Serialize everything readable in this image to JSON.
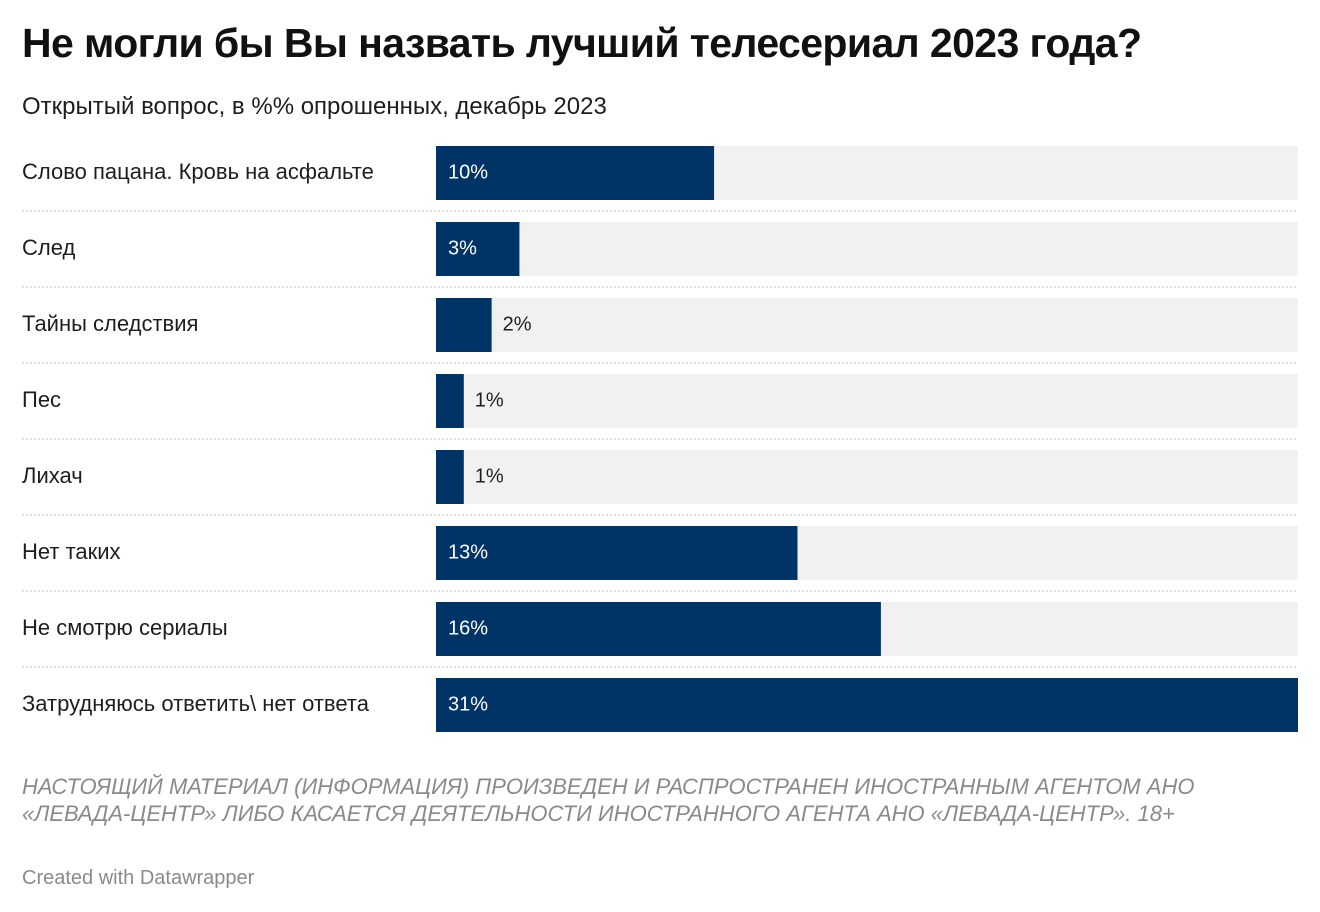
{
  "colors": {
    "bar": "#003366",
    "track": "#f1f1f1",
    "separator": "#d6d6d6"
  },
  "chart_data": {
    "type": "bar",
    "orientation": "horizontal",
    "title": "Не могли бы Вы назвать лучший телесериал 2023 года?",
    "subtitle": "Открытый вопрос, в %% опрошенных, декабрь 2023",
    "categories": [
      "Слово пацана. Кровь на асфальте",
      "След",
      "Тайны следствия",
      "Пес",
      "Лихач",
      "Нет таких",
      "Не смотрю сериалы",
      "Затрудняюсь ответить\\ нет ответа"
    ],
    "values": [
      10,
      3,
      2,
      1,
      1,
      13,
      16,
      31
    ],
    "value_labels": [
      "10%",
      "3%",
      "2%",
      "1%",
      "1%",
      "13%",
      "16%",
      "31%"
    ],
    "xlim": [
      0,
      31
    ],
    "grid": false,
    "legend": "none"
  },
  "notes": "НАСТОЯЩИЙ МАТЕРИАЛ (ИНФОРМАЦИЯ) ПРОИЗВЕДЕН И РАСПРОСТРАНЕН ИНОСТРАННЫМ АГЕНТОМ АНО «ЛЕВАДА-ЦЕНТР» ЛИБО КАСАЕТСЯ ДЕЯТЕЛЬНОСТИ ИНОСТРАННОГО АГЕНТА АНО «ЛЕВАДА-ЦЕНТР». 18+",
  "credit": "Created with Datawrapper"
}
